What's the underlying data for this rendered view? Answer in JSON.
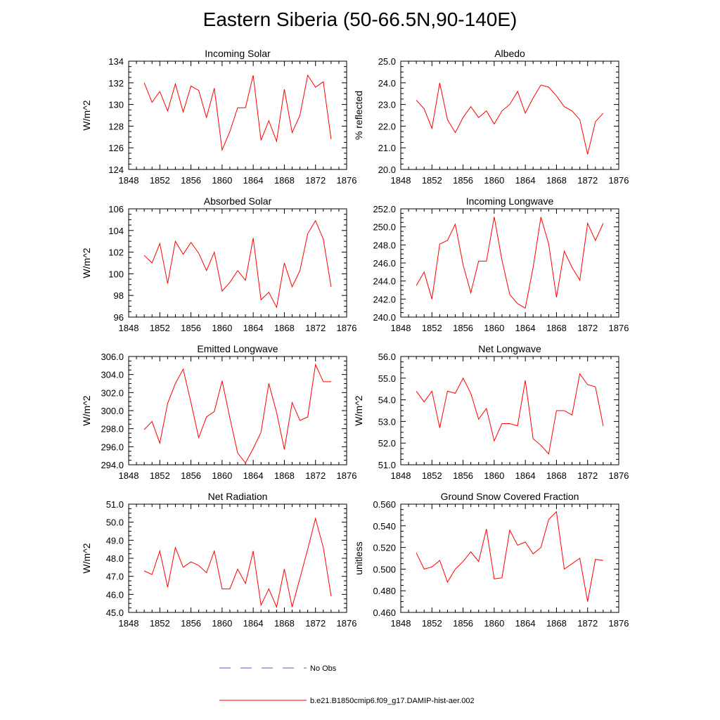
{
  "title": "Eastern Siberia (50-66.5N,90-140E)",
  "chart_data": [
    {
      "type": "line",
      "title": "Incoming Solar",
      "ylabel": "W/m^2",
      "xlim": [
        1848,
        1876
      ],
      "xticks": [
        "1848",
        "1852",
        "1856",
        "1860",
        "1864",
        "1868",
        "1872",
        "1876"
      ],
      "ylim": [
        124,
        134
      ],
      "yticks": [
        "124",
        "126",
        "128",
        "130",
        "132",
        "134"
      ],
      "x": [
        1850,
        1851,
        1852,
        1853,
        1854,
        1855,
        1856,
        1857,
        1858,
        1859,
        1860,
        1861,
        1862,
        1863,
        1864,
        1865,
        1866,
        1867,
        1868,
        1869,
        1870,
        1871,
        1872,
        1873,
        1874
      ],
      "series": [
        {
          "values": [
            132.0,
            130.2,
            131.2,
            129.4,
            131.9,
            129.3,
            131.7,
            131.3,
            128.8,
            131.5,
            125.8,
            127.5,
            129.7,
            129.7,
            132.7,
            126.7,
            128.5,
            126.6,
            131.4,
            127.4,
            129.0,
            132.7,
            131.6,
            132.1,
            126.8
          ]
        }
      ]
    },
    {
      "type": "line",
      "title": "Albedo",
      "ylabel": "% reflected",
      "xlim": [
        1848,
        1876
      ],
      "xticks": [
        "1848",
        "1852",
        "1856",
        "1860",
        "1864",
        "1868",
        "1872",
        "1876"
      ],
      "ylim": [
        20,
        25
      ],
      "yticks": [
        "20.0",
        "21.0",
        "22.0",
        "23.0",
        "24.0",
        "25.0"
      ],
      "x": [
        1850,
        1851,
        1852,
        1853,
        1854,
        1855,
        1856,
        1857,
        1858,
        1859,
        1860,
        1861,
        1862,
        1863,
        1864,
        1865,
        1866,
        1867,
        1868,
        1869,
        1870,
        1871,
        1872,
        1873,
        1874
      ],
      "series": [
        {
          "values": [
            23.2,
            22.8,
            21.9,
            24.0,
            22.3,
            21.7,
            22.4,
            22.9,
            22.4,
            22.7,
            22.1,
            22.7,
            23.0,
            23.6,
            22.6,
            23.3,
            23.9,
            23.8,
            23.4,
            22.9,
            22.7,
            22.3,
            20.7,
            22.2,
            22.6
          ]
        }
      ]
    },
    {
      "type": "line",
      "title": "Absorbed Solar",
      "ylabel": "W/m^2",
      "xlim": [
        1848,
        1876
      ],
      "xticks": [
        "1848",
        "1852",
        "1856",
        "1860",
        "1864",
        "1868",
        "1872",
        "1876"
      ],
      "ylim": [
        96,
        106
      ],
      "yticks": [
        "96",
        "98",
        "100",
        "102",
        "104",
        "106"
      ],
      "x": [
        1850,
        1851,
        1852,
        1853,
        1854,
        1855,
        1856,
        1857,
        1858,
        1859,
        1860,
        1861,
        1862,
        1863,
        1864,
        1865,
        1866,
        1867,
        1868,
        1869,
        1870,
        1871,
        1872,
        1873,
        1874
      ],
      "series": [
        {
          "values": [
            101.7,
            101.0,
            102.8,
            99.1,
            103.0,
            101.8,
            102.9,
            101.9,
            100.3,
            102.0,
            98.4,
            99.2,
            100.3,
            99.4,
            103.3,
            97.6,
            98.3,
            96.9,
            101.0,
            98.8,
            100.3,
            103.7,
            104.9,
            103.2,
            98.8
          ]
        }
      ]
    },
    {
      "type": "line",
      "title": "Incoming Longwave",
      "ylabel": "",
      "xlim": [
        1848,
        1876
      ],
      "xticks": [
        "1848",
        "1852",
        "1856",
        "1860",
        "1864",
        "1868",
        "1872",
        "1876"
      ],
      "ylim": [
        240,
        252
      ],
      "yticks": [
        "240.0",
        "242.0",
        "244.0",
        "246.0",
        "248.0",
        "250.0",
        "252.0"
      ],
      "x": [
        1850,
        1851,
        1852,
        1853,
        1854,
        1855,
        1856,
        1857,
        1858,
        1859,
        1860,
        1861,
        1862,
        1863,
        1864,
        1865,
        1866,
        1867,
        1868,
        1869,
        1870,
        1871,
        1872,
        1873,
        1874
      ],
      "series": [
        {
          "values": [
            243.5,
            245.0,
            242.0,
            248.1,
            248.5,
            250.3,
            245.8,
            242.7,
            246.2,
            246.2,
            251.1,
            246.3,
            242.5,
            241.5,
            241.0,
            245.5,
            251.1,
            248.1,
            242.2,
            247.3,
            245.5,
            244.1,
            250.4,
            248.5,
            250.4
          ]
        }
      ]
    },
    {
      "type": "line",
      "title": "Emitted Longwave",
      "ylabel": "W/m^2",
      "xlim": [
        1848,
        1876
      ],
      "xticks": [
        "1848",
        "1852",
        "1856",
        "1860",
        "1864",
        "1868",
        "1872",
        "1876"
      ],
      "ylim": [
        294,
        306
      ],
      "yticks": [
        "294.0",
        "296.0",
        "298.0",
        "300.0",
        "302.0",
        "304.0",
        "306.0"
      ],
      "x": [
        1850,
        1851,
        1852,
        1853,
        1854,
        1855,
        1856,
        1857,
        1858,
        1859,
        1860,
        1861,
        1862,
        1863,
        1864,
        1865,
        1866,
        1867,
        1868,
        1869,
        1870,
        1871,
        1872,
        1873,
        1874
      ],
      "series": [
        {
          "values": [
            297.9,
            298.8,
            296.4,
            300.8,
            303.0,
            304.6,
            300.9,
            297.0,
            299.3,
            299.9,
            303.3,
            299.2,
            295.3,
            294.2,
            295.8,
            297.6,
            303.0,
            299.8,
            295.7,
            300.9,
            298.9,
            299.3,
            305.1,
            303.2,
            303.2
          ]
        }
      ]
    },
    {
      "type": "line",
      "title": "Net Longwave",
      "ylabel": "W/m^2",
      "xlim": [
        1848,
        1876
      ],
      "xticks": [
        "1848",
        "1852",
        "1856",
        "1860",
        "1864",
        "1868",
        "1872",
        "1876"
      ],
      "ylim": [
        51,
        56
      ],
      "yticks": [
        "51.0",
        "52.0",
        "53.0",
        "54.0",
        "55.0",
        "56.0"
      ],
      "x": [
        1850,
        1851,
        1852,
        1853,
        1854,
        1855,
        1856,
        1857,
        1858,
        1859,
        1860,
        1861,
        1862,
        1863,
        1864,
        1865,
        1866,
        1867,
        1868,
        1869,
        1870,
        1871,
        1872,
        1873,
        1874
      ],
      "series": [
        {
          "values": [
            54.4,
            53.9,
            54.4,
            52.7,
            54.4,
            54.3,
            55.0,
            54.3,
            53.1,
            53.6,
            52.1,
            52.9,
            52.9,
            52.8,
            54.9,
            52.2,
            51.9,
            51.5,
            53.5,
            53.5,
            53.3,
            55.2,
            54.7,
            54.6,
            52.8
          ]
        }
      ]
    },
    {
      "type": "line",
      "title": "Net Radiation",
      "ylabel": "W/m^2",
      "xlim": [
        1848,
        1876
      ],
      "xticks": [
        "1848",
        "1852",
        "1856",
        "1860",
        "1864",
        "1868",
        "1872",
        "1876"
      ],
      "ylim": [
        45,
        51
      ],
      "yticks": [
        "45.0",
        "46.0",
        "47.0",
        "48.0",
        "49.0",
        "50.0",
        "51.0"
      ],
      "x": [
        1850,
        1851,
        1852,
        1853,
        1854,
        1855,
        1856,
        1857,
        1858,
        1859,
        1860,
        1861,
        1862,
        1863,
        1864,
        1865,
        1866,
        1867,
        1868,
        1869,
        1870,
        1871,
        1872,
        1873,
        1874
      ],
      "series": [
        {
          "values": [
            47.3,
            47.1,
            48.4,
            46.4,
            48.6,
            47.5,
            47.8,
            47.6,
            47.2,
            48.4,
            46.3,
            46.3,
            47.4,
            46.6,
            48.4,
            45.4,
            46.3,
            45.3,
            47.4,
            45.3,
            46.9,
            48.5,
            50.2,
            48.6,
            45.9
          ]
        }
      ]
    },
    {
      "type": "line",
      "title": "Ground Snow Covered Fraction",
      "ylabel": "unitless",
      "xlim": [
        1848,
        1876
      ],
      "xticks": [
        "1848",
        "1852",
        "1856",
        "1860",
        "1864",
        "1868",
        "1872",
        "1876"
      ],
      "ylim": [
        0.46,
        0.56
      ],
      "yticks": [
        "0.460",
        "0.480",
        "0.500",
        "0.520",
        "0.540",
        "0.560"
      ],
      "x": [
        1850,
        1851,
        1852,
        1853,
        1854,
        1855,
        1856,
        1857,
        1858,
        1859,
        1860,
        1861,
        1862,
        1863,
        1864,
        1865,
        1866,
        1867,
        1868,
        1869,
        1870,
        1871,
        1872,
        1873,
        1874
      ],
      "series": [
        {
          "values": [
            0.515,
            0.5,
            0.502,
            0.508,
            0.488,
            0.5,
            0.507,
            0.516,
            0.507,
            0.537,
            0.491,
            0.492,
            0.536,
            0.522,
            0.525,
            0.514,
            0.52,
            0.546,
            0.553,
            0.5,
            0.505,
            0.51,
            0.47,
            0.509,
            0.508
          ]
        }
      ]
    }
  ],
  "legend": [
    {
      "label": "No Obs",
      "color": "#5a5ac8",
      "dash": true
    },
    {
      "label": "b.e21.B1850cmip6.f09_g17.DAMIP-hist-aer.002",
      "color": "#ff0000",
      "dash": false
    }
  ],
  "colors": {
    "model_line": "#ff0000",
    "obs_line": "#5a5ac8",
    "axes": "#000000"
  }
}
